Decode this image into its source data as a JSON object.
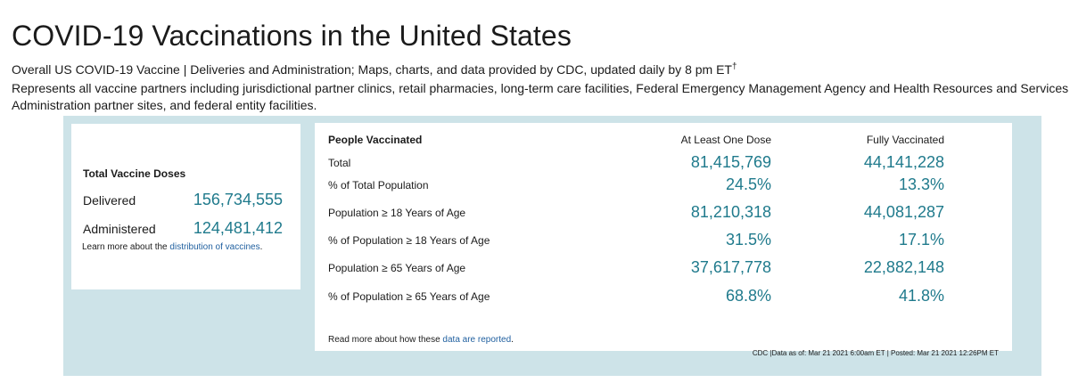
{
  "page": {
    "title": "COVID-19 Vaccinations in the United States",
    "subtitle_line1": "Overall US COVID-19 Vaccine | Deliveries and Administration; Maps, charts, and data provided by CDC, updated daily by 8 pm ET",
    "subtitle_dagger": "†",
    "subtitle_line2": "Represents all vaccine partners including jurisdictional partner clinics, retail pharmacies, long-term care facilities, Federal Emergency Management Agency and Health Resources and Services",
    "subtitle_line3": "Administration partner sites, and federal entity facilities."
  },
  "doses": {
    "heading": "Total Vaccine Doses",
    "delivered_label": "Delivered",
    "delivered_value": "156,734,555",
    "administered_label": "Administered",
    "administered_value": "124,481,412",
    "note_prefix": "Learn more about the ",
    "note_link": "distribution of vaccines",
    "note_suffix": "."
  },
  "people": {
    "heading": "People Vaccinated",
    "col1": "At Least One Dose",
    "col2": "Fully Vaccinated",
    "rows": [
      {
        "label": "Total",
        "one_dose": "81,415,769",
        "full": "44,141,228"
      },
      {
        "label": "% of Total Population",
        "one_dose": "24.5%",
        "full": "13.3%"
      },
      {
        "label": "Population ≥ 18 Years of Age",
        "one_dose": "81,210,318",
        "full": "44,081,287"
      },
      {
        "label": "% of Population ≥ 18 Years of Age",
        "one_dose": "31.5%",
        "full": "17.1%"
      },
      {
        "label": "Population ≥ 65 Years of Age",
        "one_dose": "37,617,778",
        "full": "22,882,148"
      },
      {
        "label": "% of Population ≥ 65 Years of Age",
        "one_dose": "68.8%",
        "full": "41.8%"
      }
    ],
    "note_prefix": "Read more about how these ",
    "note_link": "data are reported",
    "note_suffix": "."
  },
  "footer": {
    "text": "CDC |Data as of: Mar 21 2021 6:00am ET | Posted: Mar 21 2021 12:26PM ET"
  },
  "colors": {
    "accent": "#1f7a8c",
    "panel_bg": "#cde3e8",
    "link": "#1f5f9f"
  }
}
